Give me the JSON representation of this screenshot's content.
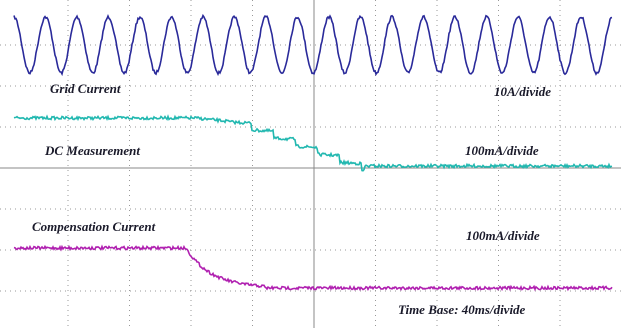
{
  "labels": {
    "grid_current": "Grid Current",
    "grid_scale": "10A/divide",
    "dc_measurement": "DC Measurement",
    "dc_scale": "100mA/divide",
    "compensation_current": "Compensation Current",
    "compensation_scale": "100mA/divide",
    "time_base": "Time Base: 40ms/divide"
  }
}
